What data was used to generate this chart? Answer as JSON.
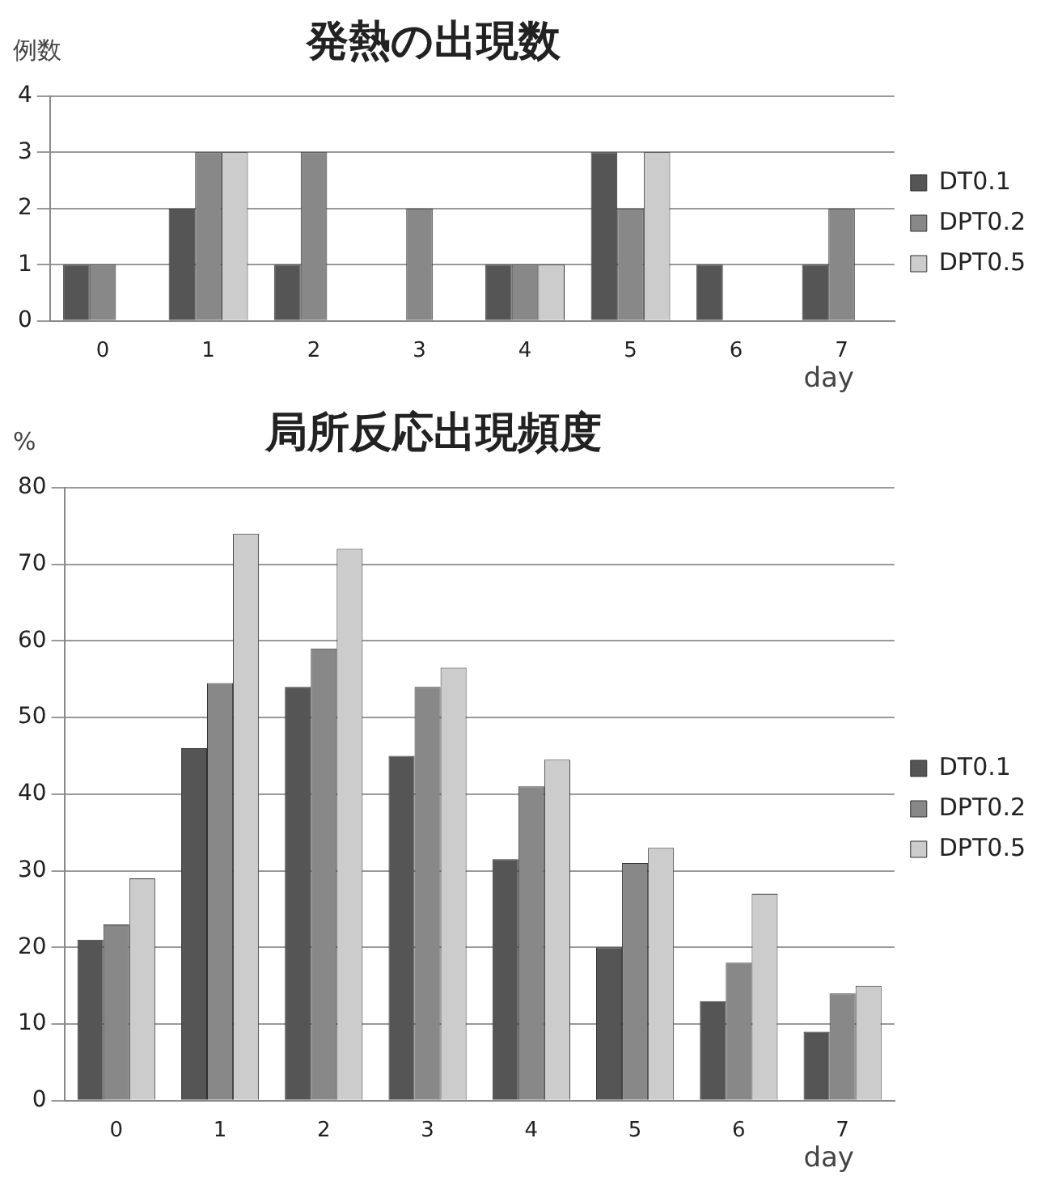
{
  "chart_data": [
    {
      "type": "bar",
      "title": "発熱の出現数",
      "ylabel": "例数",
      "xlabel": "day",
      "categories": [
        "0",
        "1",
        "2",
        "3",
        "4",
        "5",
        "6",
        "7"
      ],
      "series": [
        {
          "name": "DT0.1",
          "color": "#555555",
          "values": [
            1,
            2,
            1,
            0,
            1,
            3,
            1,
            1
          ]
        },
        {
          "name": "DPT0.2",
          "color": "#888888",
          "values": [
            1,
            3,
            3,
            2,
            1,
            2,
            0,
            2
          ]
        },
        {
          "name": "DPT0.5",
          "color": "#cccccc",
          "values": [
            0,
            3,
            0,
            0,
            1,
            3,
            0,
            0
          ]
        }
      ],
      "ylim": [
        0,
        4
      ],
      "yticks": [
        0,
        1,
        2,
        3,
        4
      ],
      "grid": "y",
      "legend": "right"
    },
    {
      "type": "bar",
      "title": "局所反応出現頻度",
      "ylabel": "%",
      "xlabel": "day",
      "categories": [
        "0",
        "1",
        "2",
        "3",
        "4",
        "5",
        "6",
        "7"
      ],
      "series": [
        {
          "name": "DT0.1",
          "color": "#555555",
          "values": [
            21,
            46,
            54,
            45,
            31.5,
            20,
            13,
            9
          ]
        },
        {
          "name": "DPT0.2",
          "color": "#888888",
          "values": [
            23,
            54.5,
            59,
            54,
            41,
            31,
            18,
            14
          ]
        },
        {
          "name": "DPT0.5",
          "color": "#cccccc",
          "values": [
            29,
            74,
            72,
            56.5,
            44.5,
            33,
            27,
            15
          ]
        }
      ],
      "ylim": [
        0,
        80
      ],
      "yticks": [
        0,
        10,
        20,
        30,
        40,
        50,
        60,
        70,
        80
      ],
      "grid": "y",
      "legend": "right"
    }
  ]
}
